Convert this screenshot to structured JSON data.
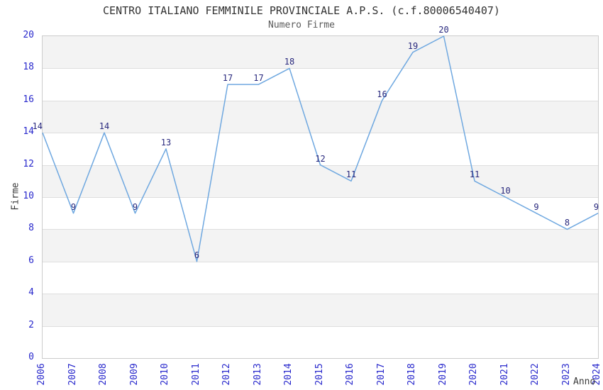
{
  "chart_data": {
    "type": "line",
    "title": "CENTRO ITALIANO FEMMINILE PROVINCIALE A.P.S. (c.f.80006540407)",
    "subtitle": "Numero Firme",
    "xlabel": "Anno",
    "ylabel": "Firme",
    "x": [
      2006,
      2007,
      2008,
      2009,
      2010,
      2011,
      2012,
      2013,
      2014,
      2015,
      2016,
      2017,
      2018,
      2019,
      2020,
      2021,
      2022,
      2023,
      2024
    ],
    "series": [
      {
        "name": "Numero Firme",
        "values": [
          14,
          9,
          14,
          9,
          13,
          6,
          17,
          17,
          18,
          12,
          11,
          16,
          19,
          20,
          11,
          10,
          9,
          8,
          9
        ]
      }
    ],
    "data_labels_visible": true,
    "ylim": [
      0,
      20
    ],
    "yticks": [
      0,
      2,
      4,
      6,
      8,
      10,
      12,
      14,
      16,
      18,
      20
    ],
    "grid": "horizontal gridlines every 2 units with alternating shaded bands",
    "legend": "none"
  },
  "colors": {
    "line": "#6fa8e0",
    "tick_label": "#2828cc",
    "data_label": "#28287d",
    "title": "#333333",
    "subtitle": "#5a5a5a",
    "axis_title": "#3a3a3a",
    "band_gray": "#f3f3f3",
    "band_white": "#ffffff",
    "gridline": "#dedede",
    "plot_border": "#cccccc"
  }
}
